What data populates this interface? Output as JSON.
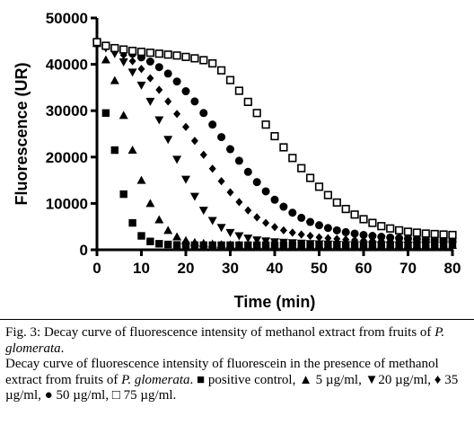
{
  "chart_data": {
    "type": "scatter",
    "xlabel": "Time (min)",
    "ylabel": "Fluorescence (UR)",
    "xlim": [
      0,
      80
    ],
    "ylim": [
      0,
      50000
    ],
    "xticks": [
      0,
      10,
      20,
      30,
      40,
      50,
      60,
      70,
      80
    ],
    "yticks": [
      0,
      10000,
      20000,
      30000,
      40000,
      50000
    ],
    "xtick_labels": [
      "0",
      "10",
      "20",
      "30",
      "40",
      "50",
      "60",
      "70",
      "80"
    ],
    "ytick_labels": [
      "0",
      "10000",
      "20000",
      "30000",
      "40000",
      "50000"
    ],
    "grid": false,
    "series": [
      {
        "name": "positive control",
        "marker": "square-filled",
        "x": [
          0,
          2,
          4,
          6,
          8,
          10,
          12,
          14,
          16,
          18,
          20,
          22,
          24,
          26,
          28,
          30,
          32,
          34,
          36,
          38,
          40,
          42,
          44,
          46,
          48,
          50,
          52,
          54,
          56,
          58,
          60,
          62,
          64,
          66,
          68,
          70,
          72,
          74,
          76,
          78,
          80
        ],
        "y": [
          44800,
          29500,
          21500,
          12000,
          5800,
          3000,
          1800,
          1300,
          1150,
          1050,
          1000,
          1000,
          1000,
          1000,
          1000,
          1000,
          1000,
          1000,
          1000,
          1000,
          1000,
          1000,
          1000,
          1000,
          1000,
          1000,
          1000,
          1000,
          1000,
          1000,
          1000,
          1000,
          1000,
          1000,
          1000,
          1000,
          1000,
          1000,
          1000,
          1000,
          1000
        ]
      },
      {
        "name": "5 µg/ml",
        "marker": "triangle-up",
        "x": [
          0,
          2,
          4,
          6,
          8,
          10,
          12,
          14,
          16,
          18,
          20,
          22,
          24,
          26,
          28,
          30,
          32,
          34,
          36,
          38,
          40,
          42,
          44,
          46,
          48,
          50,
          52,
          54,
          56,
          58,
          60,
          62,
          64,
          66,
          68,
          70,
          72,
          74,
          76,
          78,
          80
        ],
        "y": [
          44500,
          41000,
          36500,
          29000,
          21500,
          15000,
          10000,
          6500,
          4200,
          2800,
          2000,
          1600,
          1400,
          1250,
          1150,
          1100,
          1050,
          1000,
          1000,
          1000,
          1000,
          1000,
          1000,
          1000,
          1000,
          1000,
          1000,
          1000,
          1000,
          1000,
          1000,
          1000,
          1000,
          1000,
          1000,
          1000,
          1000,
          1000,
          1000,
          1000,
          1000
        ]
      },
      {
        "name": "20 µg/ml",
        "marker": "triangle-down",
        "x": [
          0,
          2,
          4,
          6,
          8,
          10,
          12,
          14,
          16,
          18,
          20,
          22,
          24,
          26,
          28,
          30,
          32,
          34,
          36,
          38,
          40,
          42,
          44,
          46,
          48,
          50,
          52,
          54,
          56,
          58,
          60,
          62,
          64,
          66,
          68,
          70,
          72,
          74,
          76,
          78,
          80
        ],
        "y": [
          44500,
          43500,
          42300,
          40500,
          38300,
          35500,
          32000,
          28000,
          23800,
          19500,
          15200,
          11500,
          8500,
          6300,
          4800,
          3700,
          3000,
          2500,
          2100,
          1900,
          1700,
          1600,
          1500,
          1400,
          1300,
          1250,
          1200,
          1150,
          1100,
          1100,
          1050,
          1050,
          1000,
          1000,
          1000,
          1000,
          1000,
          1000,
          1000,
          1000,
          1000
        ]
      },
      {
        "name": "35 µg/ml",
        "marker": "diamond",
        "x": [
          0,
          2,
          4,
          6,
          8,
          10,
          12,
          14,
          16,
          18,
          20,
          22,
          24,
          26,
          28,
          30,
          32,
          34,
          36,
          38,
          40,
          42,
          44,
          46,
          48,
          50,
          52,
          54,
          56,
          58,
          60,
          62,
          64,
          66,
          68,
          70,
          72,
          74,
          76,
          78,
          80
        ],
        "y": [
          44500,
          43800,
          43000,
          42000,
          40700,
          39000,
          37000,
          34500,
          32000,
          29300,
          26500,
          23500,
          20500,
          17500,
          14800,
          12400,
          10300,
          8500,
          7000,
          5800,
          4900,
          4200,
          3700,
          3300,
          3000,
          2700,
          2500,
          2350,
          2200,
          2100,
          2000,
          1950,
          1900,
          1850,
          1800,
          1750,
          1700,
          1700,
          1650,
          1650,
          1600
        ]
      },
      {
        "name": "50 µg/ml",
        "marker": "circle",
        "x": [
          0,
          2,
          4,
          6,
          8,
          10,
          12,
          14,
          16,
          18,
          20,
          22,
          24,
          26,
          28,
          30,
          32,
          34,
          36,
          38,
          40,
          42,
          44,
          46,
          48,
          50,
          52,
          54,
          56,
          58,
          60,
          62,
          64,
          66,
          68,
          70,
          72,
          74,
          76,
          78,
          80
        ],
        "y": [
          44500,
          44000,
          43500,
          43000,
          42300,
          41500,
          40600,
          39400,
          38000,
          36300,
          34200,
          32000,
          29500,
          27000,
          24300,
          21700,
          19200,
          16800,
          14600,
          12600,
          10800,
          9300,
          8000,
          6900,
          6000,
          5300,
          4700,
          4200,
          3800,
          3500,
          3200,
          3000,
          2800,
          2650,
          2500,
          2400,
          2300,
          2200,
          2150,
          2100,
          2050
        ]
      },
      {
        "name": "75 µg/ml",
        "marker": "square-open",
        "x": [
          0,
          2,
          4,
          6,
          8,
          10,
          12,
          14,
          16,
          18,
          20,
          22,
          24,
          26,
          28,
          30,
          32,
          34,
          36,
          38,
          40,
          42,
          44,
          46,
          48,
          50,
          52,
          54,
          56,
          58,
          60,
          62,
          64,
          66,
          68,
          70,
          72,
          74,
          76,
          78,
          80
        ],
        "y": [
          44800,
          44000,
          43500,
          43200,
          42900,
          42700,
          42500,
          42300,
          42100,
          41900,
          41600,
          41300,
          40900,
          40200,
          38700,
          36600,
          34300,
          31900,
          29500,
          27000,
          24500,
          22100,
          19800,
          17600,
          15500,
          13600,
          11800,
          10200,
          8800,
          7600,
          6600,
          5800,
          5100,
          4600,
          4200,
          3900,
          3700,
          3500,
          3400,
          3300,
          3200
        ]
      }
    ]
  },
  "caption": {
    "fig_label": "Fig. 3:",
    "fig_title": " Decay curve of fluorescence intensity of methanol extract from fruits of ",
    "species": "P. glomerata",
    "period": ".",
    "desc_a": "Decay curve of fluorescence intensity of fluorescein in the presence of methanol extract from fruits of ",
    "desc_species": "P. glomerata",
    "legend_text": ". ■ positive control, ▲ 5 µg/ml, ▼20 µg/ml, ♦ 35 µg/ml, ● 50 µg/ml, □ 75 µg/ml."
  }
}
